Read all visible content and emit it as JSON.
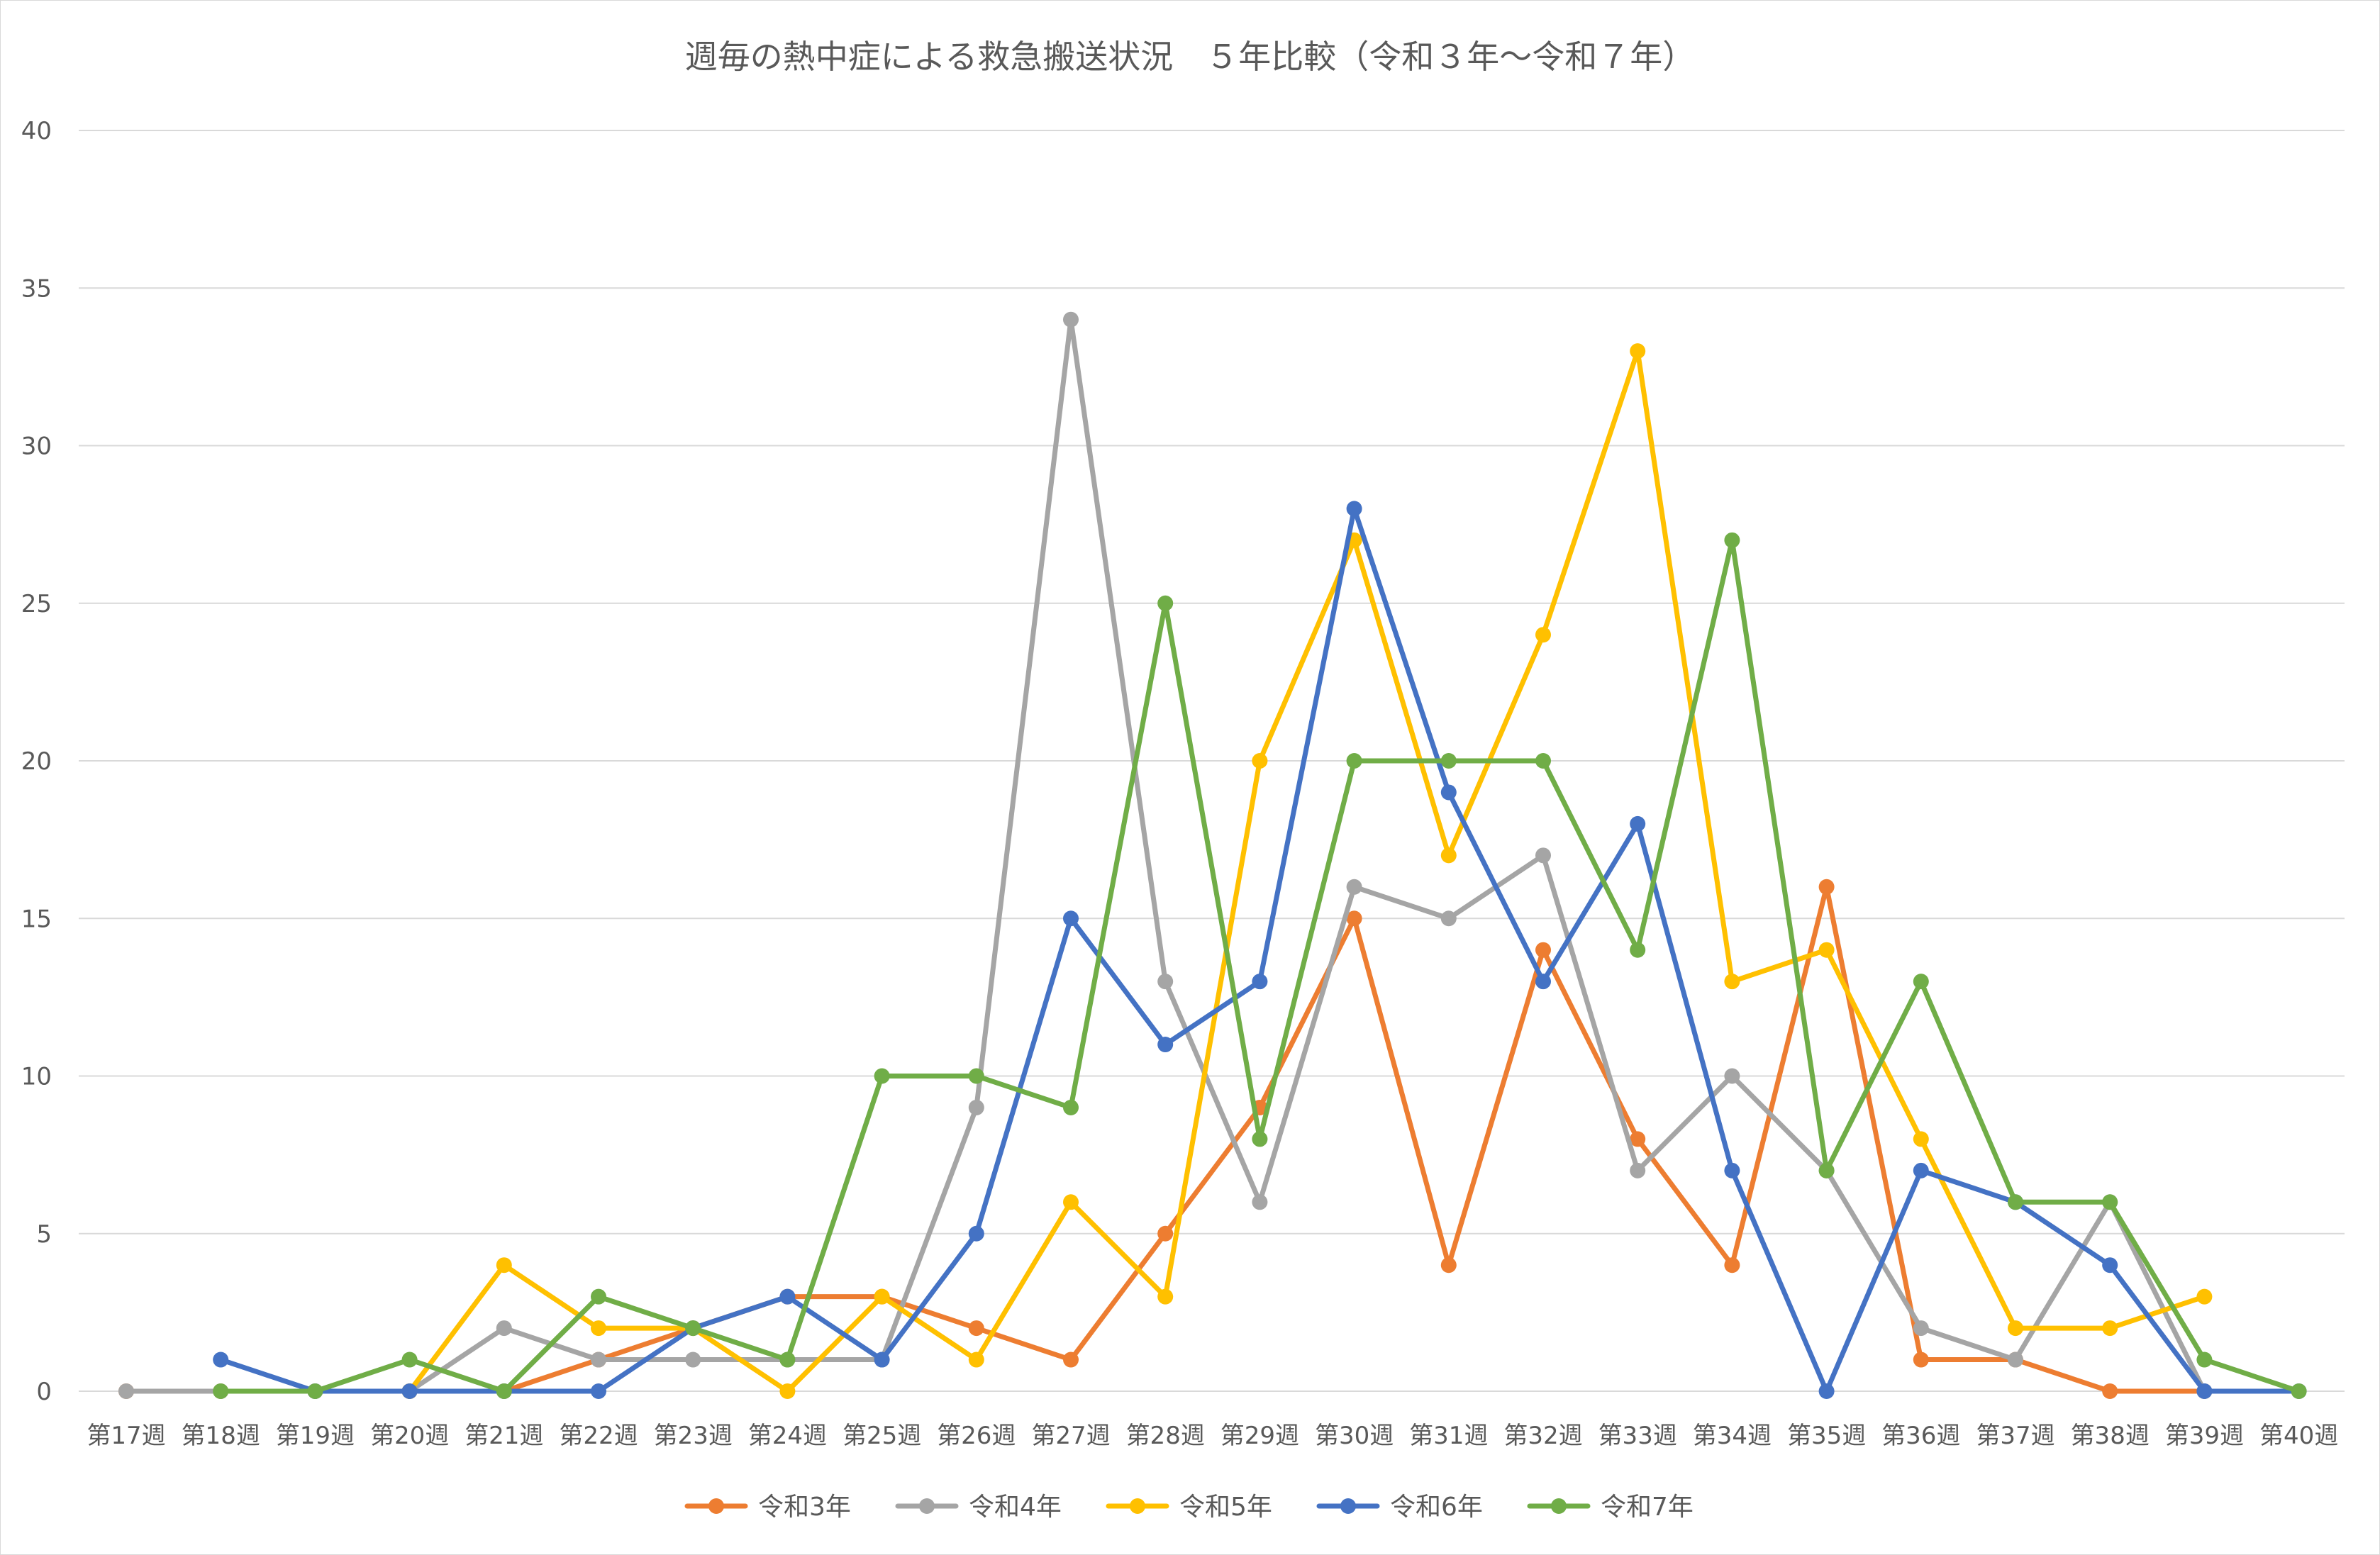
{
  "chart_data": {
    "type": "line",
    "title": "週毎の熱中症による救急搬送状況　５年比較（令和３年～令和７年）",
    "xlabel": "",
    "ylabel": "",
    "ylim": [
      0,
      40
    ],
    "yticks": [
      0,
      5,
      10,
      15,
      20,
      25,
      30,
      35,
      40
    ],
    "grid": true,
    "legend_position": "bottom",
    "categories": [
      "第17週",
      "第18週",
      "第19週",
      "第20週",
      "第21週",
      "第22週",
      "第23週",
      "第24週",
      "第25週",
      "第26週",
      "第27週",
      "第28週",
      "第29週",
      "第30週",
      "第31週",
      "第32週",
      "第33週",
      "第34週",
      "第35週",
      "第36週",
      "第37週",
      "第38週",
      "第39週",
      "第40週"
    ],
    "series": [
      {
        "name": "令和3年",
        "color": "#ED7D31",
        "values": [
          0,
          0,
          0,
          0,
          0,
          1,
          2,
          3,
          3,
          2,
          1,
          5,
          9,
          15,
          4,
          14,
          8,
          4,
          16,
          1,
          1,
          0,
          0,
          null
        ]
      },
      {
        "name": "令和4年",
        "color": "#A5A5A5",
        "values": [
          0,
          0,
          0,
          0,
          2,
          1,
          1,
          1,
          1,
          9,
          34,
          13,
          6,
          16,
          15,
          17,
          7,
          10,
          7,
          2,
          1,
          6,
          0,
          null
        ]
      },
      {
        "name": "令和5年",
        "color": "#FFC000",
        "values": [
          null,
          null,
          null,
          0,
          4,
          2,
          2,
          0,
          3,
          1,
          6,
          3,
          20,
          27,
          17,
          24,
          33,
          13,
          14,
          8,
          2,
          2,
          3,
          null
        ]
      },
      {
        "name": "令和6年",
        "color": "#4472C4",
        "values": [
          null,
          1,
          0,
          0,
          0,
          0,
          2,
          3,
          1,
          5,
          15,
          11,
          13,
          28,
          19,
          13,
          18,
          7,
          0,
          7,
          6,
          4,
          0,
          0
        ]
      },
      {
        "name": "令和7年",
        "color": "#70AD47",
        "values": [
          null,
          0,
          0,
          1,
          0,
          3,
          2,
          1,
          10,
          10,
          9,
          25,
          8,
          20,
          20,
          20,
          14,
          27,
          7,
          13,
          6,
          6,
          1,
          0
        ]
      }
    ]
  }
}
